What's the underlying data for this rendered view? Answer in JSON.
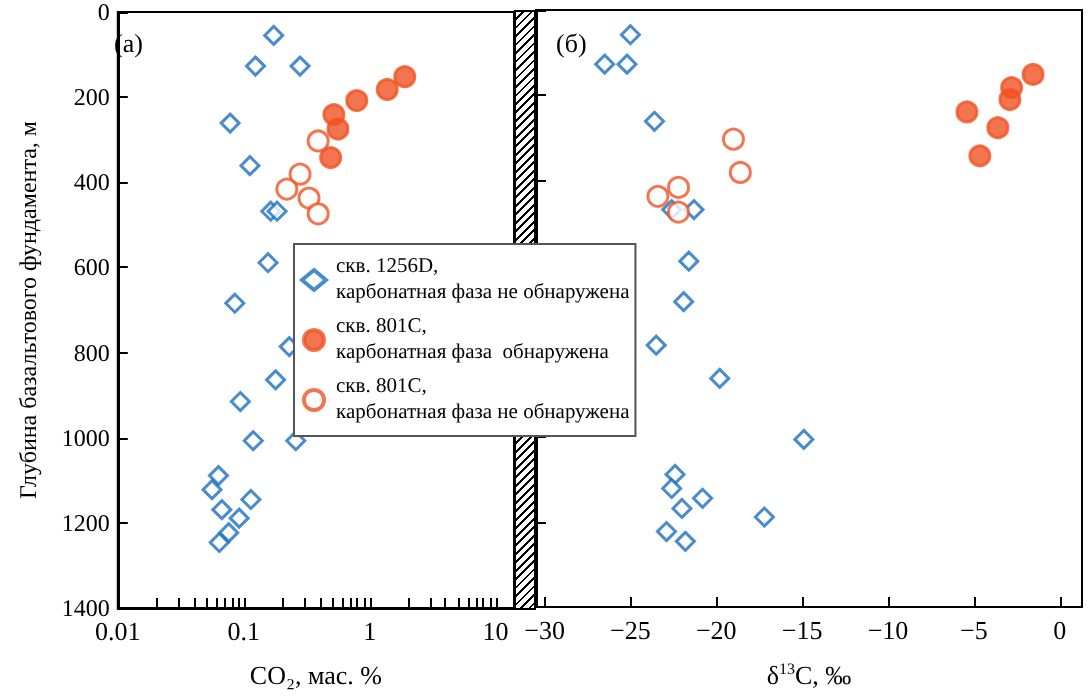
{
  "chart_data": [
    {
      "type": "scatter",
      "xlabel": "CO₂, мас. %",
      "ylabel": "Глубина базальтового фундамента, м",
      "log": "x",
      "xlim": [
        0.01,
        14
      ],
      "xticks": [
        0.01,
        {
          "value": 0.02,
          "label": null
        },
        {
          "value": 0.03,
          "label": null
        },
        {
          "value": 0.04,
          "label": null
        },
        {
          "value": 0.05,
          "label": null
        },
        {
          "value": 0.06,
          "label": null
        },
        {
          "value": 0.07,
          "label": null
        },
        {
          "value": 0.08,
          "label": null
        },
        {
          "value": 0.09,
          "label": null
        },
        0.1,
        {
          "value": 0.2,
          "label": null
        },
        {
          "value": 0.3,
          "label": null
        },
        {
          "value": 0.4,
          "label": null
        },
        {
          "value": 0.5,
          "label": null
        },
        {
          "value": 0.6,
          "label": null
        },
        {
          "value": 0.7,
          "label": null
        },
        {
          "value": 0.8,
          "label": null
        },
        {
          "value": 0.9,
          "label": null
        },
        1,
        {
          "value": 2,
          "label": null
        },
        {
          "value": 3,
          "label": null
        },
        {
          "value": 4,
          "label": null
        },
        {
          "value": 5,
          "label": null
        },
        {
          "value": 6,
          "label": null
        },
        {
          "value": 7,
          "label": null
        },
        {
          "value": 8,
          "label": null
        },
        {
          "value": 9,
          "label": null
        },
        10
      ],
      "ylim": [
        1400,
        0
      ],
      "yticks": [
        0,
        200,
        400,
        600,
        800,
        1000,
        1200,
        1400
      ],
      "grid": false,
      "legend": "right",
      "annotations": [
        "(а)"
      ],
      "series": [
        {
          "name": "скв. 1256D,\nкарбонатная фаза не обнаружена",
          "color": "#1a6fc0",
          "marker": "diamond",
          "x": [
            0.173,
            0.124,
            0.28,
            0.078,
            0.112,
            0.164,
            0.184,
            0.156,
            0.085,
            0.23,
            0.179,
            0.094,
            0.119,
            0.259,
            0.063,
            0.056,
            0.114,
            0.067,
            0.092,
            0.076,
            0.064
          ],
          "values": [
            55,
            127,
            127,
            261,
            361,
            468,
            468,
            589,
            684,
            786,
            864,
            915,
            1007,
            1007,
            1089,
            1122,
            1145,
            1169,
            1189,
            1223,
            1246
          ]
        },
        {
          "name": "скв. 801C,\nкарбонатная фаза  обнаружена",
          "color": "#f05223",
          "marker": "circle",
          "x": [
            1.9,
            1.38,
            0.79,
            0.52,
            0.56,
            0.49
          ],
          "values": [
            152,
            182,
            208,
            241,
            275,
            342
          ]
        },
        {
          "name": "скв. 801C,\nкарбонатная фаза не обнаружена",
          "color": "#f05223",
          "marker": "circle",
          "x": [
            0.39,
            0.28,
            0.22,
            0.33,
            0.39
          ],
          "values": [
            303,
            381,
            416,
            437,
            474
          ]
        }
      ]
    },
    {
      "type": "scatter",
      "xlabel": "δ$^{13}$C, ‰",
      "xlim": [
        -30.5,
        1.3
      ],
      "xticks": [
        -30,
        -25,
        -20,
        -15,
        -10,
        -5,
        0
      ],
      "ylim": [
        1400,
        0
      ],
      "yticks": [
        0,
        200,
        400,
        600,
        800,
        1000,
        1200,
        1400
      ],
      "grid": false,
      "tick_labels": "x",
      "annotations": [
        "(б)"
      ],
      "series": [
        {
          "color": "#1a6fc0",
          "marker": "diamond",
          "x": [
            -25.0,
            -26.5,
            -25.2,
            -23.6,
            -22.6,
            -21.3,
            -21.6,
            -21.9,
            -23.5,
            -19.8,
            -14.9,
            -22.4,
            -22.6,
            -20.8,
            -22.0,
            -17.2,
            -22.9,
            -21.8
          ],
          "values": [
            58,
            127,
            127,
            261,
            468,
            468,
            589,
            684,
            786,
            864,
            1007,
            1089,
            1122,
            1145,
            1169,
            1189,
            1223,
            1246
          ]
        },
        {
          "color": "#f05223",
          "marker": "circle",
          "x": [
            -1.55,
            -2.8,
            -2.9,
            -5.4,
            -3.6,
            -4.65
          ],
          "values": [
            151,
            182,
            210,
            239,
            276,
            342
          ]
        },
        {
          "color": "#f05223",
          "marker": "circle",
          "x": [
            -19.0,
            -18.6,
            -22.2,
            -23.4,
            -22.2
          ],
          "values": [
            303,
            381,
            416,
            437,
            474
          ]
        }
      ]
    }
  ]
}
